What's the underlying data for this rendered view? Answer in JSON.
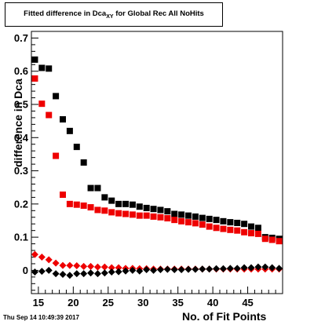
{
  "chart_data": {
    "type": "scatter",
    "title_main": "Fitted difference in Dca",
    "title_sub": "XY",
    "title_rest": " for Global Rec All NoHits",
    "xlabel": "No. of Fit Points",
    "ylabel": "difference in Dca",
    "timestamp": "Thu Sep 14 10:49:39 2017",
    "xlim": [
      14,
      50
    ],
    "ylim": [
      -0.07,
      0.72
    ],
    "x_ticks": [
      15,
      20,
      25,
      30,
      35,
      40,
      45
    ],
    "y_ticks": [
      0,
      0.1,
      0.2,
      0.3,
      0.4,
      0.5,
      0.6,
      0.7
    ],
    "grid": false,
    "series": [
      {
        "marker": "square",
        "color": "#000000",
        "x": [
          14.5,
          15.5,
          16.5,
          17.5,
          18.5,
          19.5,
          20.5,
          21.5,
          22.5,
          23.5,
          24.5,
          25.5,
          26.5,
          27.5,
          28.5,
          29.5,
          30.5,
          31.5,
          32.5,
          33.5,
          34.5,
          35.5,
          36.5,
          37.5,
          38.5,
          39.5,
          40.5,
          41.5,
          42.5,
          43.5,
          44.5,
          45.5,
          46.5,
          47.5,
          48.5,
          49.5
        ],
        "y": [
          0.635,
          0.61,
          0.608,
          0.525,
          0.455,
          0.42,
          0.372,
          0.325,
          0.248,
          0.248,
          0.22,
          0.21,
          0.2,
          0.2,
          0.198,
          0.192,
          0.188,
          0.185,
          0.182,
          0.178,
          0.17,
          0.168,
          0.165,
          0.162,
          0.158,
          0.155,
          0.152,
          0.148,
          0.145,
          0.143,
          0.14,
          0.132,
          0.128,
          0.1,
          0.098,
          0.095
        ]
      },
      {
        "marker": "square",
        "color": "#ee0000",
        "x": [
          14.5,
          15.5,
          16.5,
          17.5,
          18.5,
          19.5,
          20.5,
          21.5,
          22.5,
          23.5,
          24.5,
          25.5,
          26.5,
          27.5,
          28.5,
          29.5,
          30.5,
          31.5,
          32.5,
          33.5,
          34.5,
          35.5,
          36.5,
          37.5,
          38.5,
          39.5,
          40.5,
          41.5,
          42.5,
          43.5,
          44.5,
          45.5,
          46.5,
          47.5,
          48.5,
          49.5
        ],
        "y": [
          0.578,
          0.502,
          0.468,
          0.345,
          0.228,
          0.2,
          0.198,
          0.195,
          0.19,
          0.182,
          0.18,
          0.175,
          0.172,
          0.17,
          0.168,
          0.165,
          0.165,
          0.162,
          0.16,
          0.157,
          0.152,
          0.148,
          0.145,
          0.142,
          0.138,
          0.132,
          0.128,
          0.125,
          0.122,
          0.12,
          0.115,
          0.112,
          0.11,
          0.095,
          0.092,
          0.088
        ]
      },
      {
        "marker": "diamond",
        "color": "#ee0000",
        "x": [
          14.5,
          15.5,
          16.5,
          17.5,
          18.5,
          19.5,
          20.5,
          21.5,
          22.5,
          23.5,
          24.5,
          25.5,
          26.5,
          27.5,
          28.5,
          29.5,
          30.5,
          31.5,
          32.5,
          33.5,
          34.5,
          35.5,
          36.5,
          37.5,
          38.5,
          39.5,
          40.5,
          41.5,
          42.5,
          43.5,
          44.5,
          45.5,
          46.5,
          47.5,
          48.5,
          49.5
        ],
        "y": [
          0.048,
          0.04,
          0.032,
          0.022,
          0.015,
          0.015,
          0.014,
          0.012,
          0.012,
          0.01,
          0.01,
          0.008,
          0.008,
          0.006,
          0.006,
          0.005,
          0.005,
          0.004,
          0.004,
          0.004,
          0.004,
          0.004,
          0.004,
          0.004,
          0.004,
          0.004,
          0.004,
          0.004,
          0.004,
          0.004,
          0.004,
          0.004,
          0.004,
          0.004,
          0.004,
          0.004
        ]
      },
      {
        "marker": "diamond",
        "color": "#000000",
        "x": [
          14.5,
          15.5,
          16.5,
          17.5,
          18.5,
          19.5,
          20.5,
          21.5,
          22.5,
          23.5,
          24.5,
          25.5,
          26.5,
          27.5,
          28.5,
          29.5,
          30.5,
          31.5,
          32.5,
          33.5,
          34.5,
          35.5,
          36.5,
          37.5,
          38.5,
          39.5,
          40.5,
          41.5,
          42.5,
          43.5,
          44.5,
          45.5,
          46.5,
          47.5,
          48.5,
          49.5
        ],
        "y": [
          -0.005,
          -0.003,
          0.0,
          -0.01,
          -0.012,
          -0.015,
          -0.01,
          -0.01,
          -0.008,
          -0.01,
          -0.008,
          -0.005,
          -0.004,
          -0.002,
          0.0,
          -0.002,
          0.002,
          0.0,
          0.002,
          0.003,
          0.002,
          0.002,
          0.003,
          0.003,
          0.004,
          0.004,
          0.005,
          0.005,
          0.006,
          0.006,
          0.008,
          0.008,
          0.01,
          0.01,
          0.008,
          0.006
        ]
      }
    ]
  }
}
